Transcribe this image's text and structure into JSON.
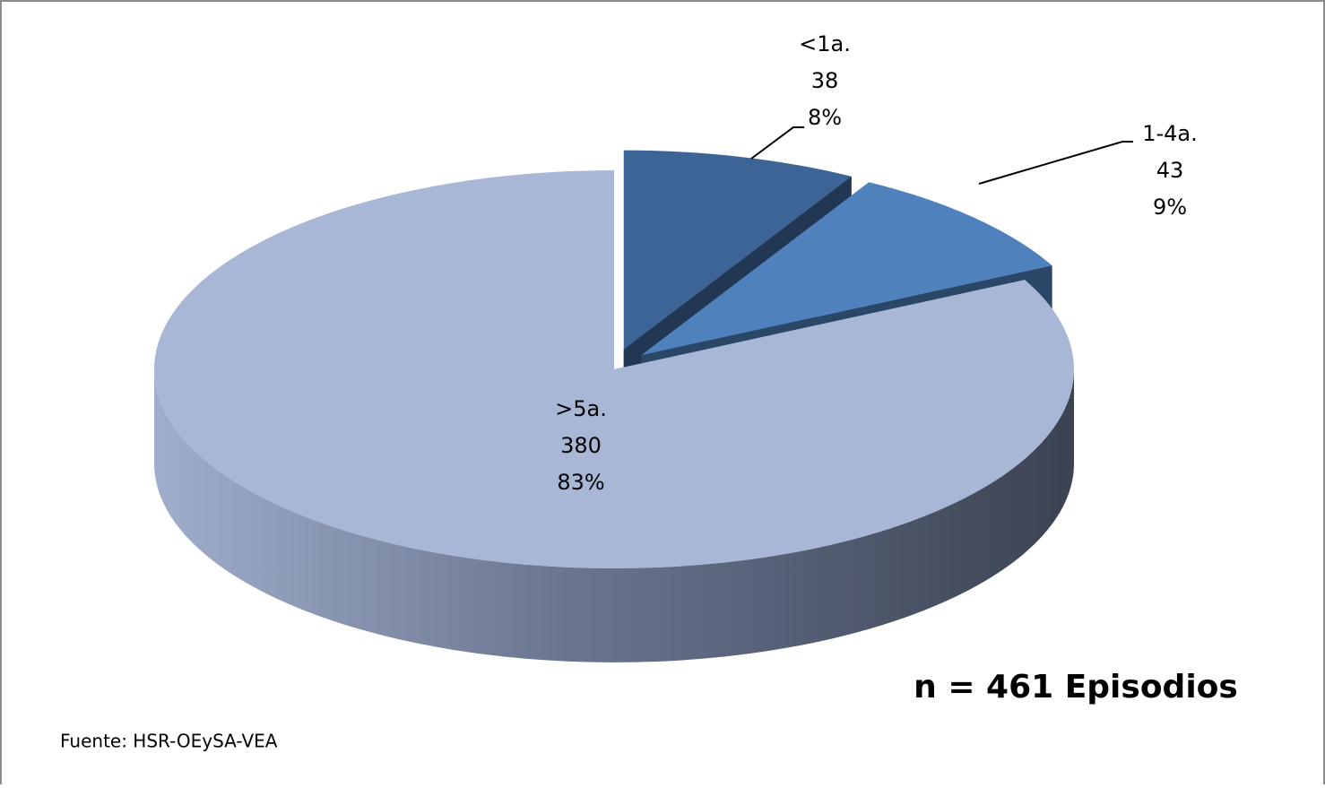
{
  "chart_data": {
    "type": "pie3d",
    "categories": [
      "<1a.",
      "1-4a.",
      ">5a."
    ],
    "values": [
      38,
      43,
      380
    ],
    "percent_labels": [
      "8%",
      "9%",
      "83%"
    ],
    "colors": [
      "#3c6496",
      "#4f81bd",
      "#a9b7d6"
    ],
    "annotation": "n = 461 Episodios",
    "source": "Fuente: HSR-OEySA-VEA"
  }
}
